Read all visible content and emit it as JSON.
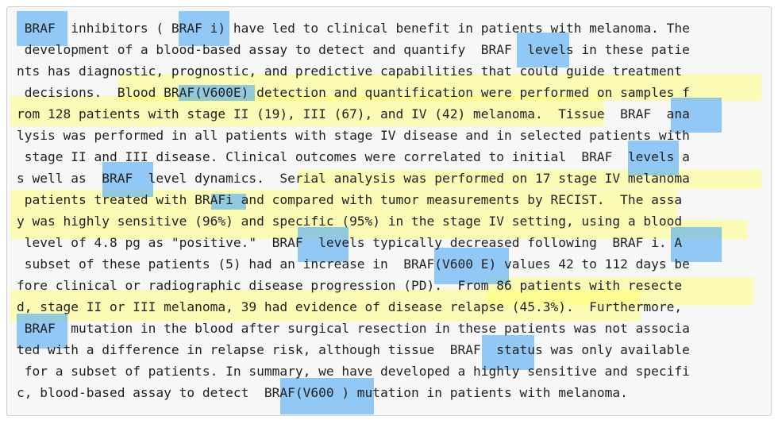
{
  "document": {
    "lines": [
      " BRAF  inhibitors ( BRAF i) have led to clinical benefit in patients with melanoma. The",
      " development of a blood-based assay to detect and quantify  BRAF  levels in these patie",
      "nts has diagnostic, prognostic, and predictive capabilities that could guide treatment",
      " decisions.  Blood BRAF(V600E) detection and quantification were performed on samples f",
      "rom 128 patients with stage II (19), III (67), and IV (42) melanoma.  Tissue  BRAF  ana",
      "lysis was performed in all patients with stage IV disease and in selected patients with",
      " stage II and III disease. Clinical outcomes were correlated to initial  BRAF  levels a",
      "s well as  BRAF  level dynamics.  Serial analysis was performed on 17 stage IV melanoma",
      " patients treated with BRAFi and compared with tumor measurements by RECIST.  The assa",
      "y was highly sensitive (96%) and specific (95%) in the stage IV setting, using a blood",
      " level of 4.8 pg as \"positive.\"  BRAF  levels typically decreased following  BRAF i. A",
      " subset of these patients (5) had an increase in  BRAF(V600 E) values 42 to 112 days be",
      "fore clinical or radiographic disease progression (PD).  From 86 patients with resecte",
      "d, stage II or III melanoma, 39 had evidence of disease relapse (45.3%).  Furthermore,",
      " BRAF  mutation in the blood after surgical resection in these patients was not associa",
      "ted with a difference in relapse risk, although tissue  BRAF  status was only available",
      " for a subset of patients. In summary, we have developed a highly sensitive and specifi",
      "c, blood-based assay to detect  BRAF(V600 ) mutation in patients with melanoma."
    ]
  },
  "colors": {
    "sentence_highlight": "#ffff66",
    "entity_highlight": "#4fa9f5",
    "text": "#222222",
    "panel_background": "#f7f7f7"
  }
}
